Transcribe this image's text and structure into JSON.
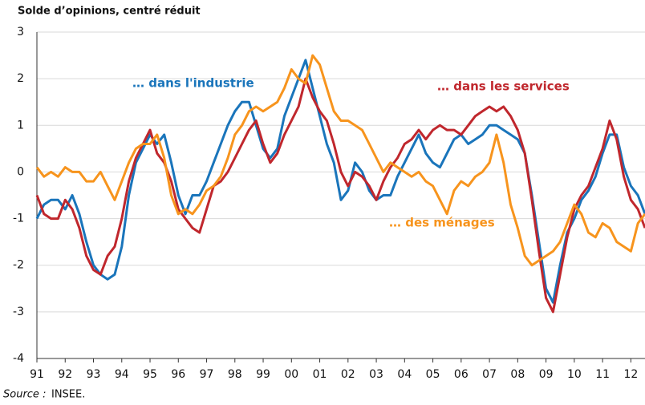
{
  "chart_data": {
    "type": "line",
    "title": "Solde d’opinions, centré réduit",
    "source_label": "Source :",
    "source": "INSEE.",
    "x": [
      1991,
      1991.25,
      1991.5,
      1991.75,
      1992,
      1992.25,
      1992.5,
      1992.75,
      1993,
      1993.25,
      1993.5,
      1993.75,
      1994,
      1994.25,
      1994.5,
      1994.75,
      1995,
      1995.25,
      1995.5,
      1995.75,
      1996,
      1996.25,
      1996.5,
      1996.75,
      1997,
      1997.25,
      1997.5,
      1997.75,
      1998,
      1998.25,
      1998.5,
      1998.75,
      1999,
      1999.25,
      1999.5,
      1999.75,
      2000,
      2000.25,
      2000.5,
      2000.75,
      2001,
      2001.25,
      2001.5,
      2001.75,
      2002,
      2002.25,
      2002.5,
      2002.75,
      2003,
      2003.25,
      2003.5,
      2003.75,
      2004,
      2004.25,
      2004.5,
      2004.75,
      2005,
      2005.25,
      2005.5,
      2005.75,
      2006,
      2006.25,
      2006.5,
      2006.75,
      2007,
      2007.25,
      2007.5,
      2007.75,
      2008,
      2008.25,
      2008.5,
      2008.75,
      2009,
      2009.25,
      2009.5,
      2009.75,
      2010,
      2010.25,
      2010.5,
      2010.75,
      2011,
      2011.25,
      2011.5,
      2011.75,
      2012,
      2012.25,
      2012.5
    ],
    "series": [
      {
        "name": "… dans l'industrie",
        "color": "#1a75bb",
        "values": [
          -1.0,
          -0.7,
          -0.6,
          -0.6,
          -0.8,
          -0.5,
          -0.9,
          -1.5,
          -2.0,
          -2.2,
          -2.3,
          -2.2,
          -1.6,
          -0.5,
          0.2,
          0.5,
          0.8,
          0.6,
          0.8,
          0.2,
          -0.5,
          -0.9,
          -0.5,
          -0.5,
          -0.2,
          0.2,
          0.6,
          1.0,
          1.3,
          1.5,
          1.5,
          1.0,
          0.5,
          0.3,
          0.5,
          1.2,
          1.6,
          2.0,
          2.4,
          1.8,
          1.2,
          0.6,
          0.2,
          -0.6,
          -0.4,
          0.2,
          0.0,
          -0.4,
          -0.6,
          -0.5,
          -0.5,
          -0.1,
          0.2,
          0.5,
          0.8,
          0.4,
          0.2,
          0.1,
          0.4,
          0.7,
          0.8,
          0.6,
          0.7,
          0.8,
          1.0,
          1.0,
          0.9,
          0.8,
          0.7,
          0.4,
          -0.5,
          -1.5,
          -2.5,
          -2.8,
          -2.0,
          -1.3,
          -1.0,
          -0.6,
          -0.4,
          -0.1,
          0.4,
          0.8,
          0.8,
          0.1,
          -0.3,
          -0.5,
          -0.9
        ]
      },
      {
        "name": "… dans les services",
        "color": "#c0272d",
        "values": [
          -0.5,
          -0.9,
          -1.0,
          -1.0,
          -0.6,
          -0.8,
          -1.2,
          -1.8,
          -2.1,
          -2.2,
          -1.8,
          -1.6,
          -1.0,
          -0.2,
          0.3,
          0.6,
          0.9,
          0.4,
          0.2,
          -0.2,
          -0.8,
          -1.0,
          -1.2,
          -1.3,
          -0.8,
          -0.3,
          -0.2,
          0.0,
          0.3,
          0.6,
          0.9,
          1.1,
          0.6,
          0.2,
          0.4,
          0.8,
          1.1,
          1.4,
          2.0,
          1.6,
          1.3,
          1.1,
          0.6,
          0.0,
          -0.3,
          0.0,
          -0.1,
          -0.3,
          -0.6,
          -0.2,
          0.1,
          0.3,
          0.6,
          0.7,
          0.9,
          0.7,
          0.9,
          1.0,
          0.9,
          0.9,
          0.8,
          1.0,
          1.2,
          1.3,
          1.4,
          1.3,
          1.4,
          1.2,
          0.9,
          0.4,
          -0.6,
          -1.7,
          -2.7,
          -3.0,
          -2.2,
          -1.4,
          -0.8,
          -0.5,
          -0.3,
          0.1,
          0.5,
          1.1,
          0.7,
          -0.1,
          -0.6,
          -0.8,
          -1.2
        ]
      },
      {
        "name": "… des ménages",
        "color": "#f7941d",
        "values": [
          0.1,
          -0.1,
          0.0,
          -0.1,
          0.1,
          0.0,
          0.0,
          -0.2,
          -0.2,
          0.0,
          -0.3,
          -0.6,
          -0.2,
          0.2,
          0.5,
          0.6,
          0.6,
          0.8,
          0.3,
          -0.5,
          -0.9,
          -0.8,
          -0.9,
          -0.7,
          -0.4,
          -0.3,
          -0.1,
          0.3,
          0.8,
          1.0,
          1.3,
          1.4,
          1.3,
          1.4,
          1.5,
          1.8,
          2.2,
          2.0,
          1.9,
          2.5,
          2.3,
          1.8,
          1.3,
          1.1,
          1.1,
          1.0,
          0.9,
          0.6,
          0.3,
          0.0,
          0.2,
          0.1,
          0.0,
          -0.1,
          0.0,
          -0.2,
          -0.3,
          -0.6,
          -0.9,
          -0.4,
          -0.2,
          -0.3,
          -0.1,
          0.0,
          0.2,
          0.8,
          0.2,
          -0.7,
          -1.2,
          -1.8,
          -2.0,
          -1.9,
          -1.8,
          -1.7,
          -1.5,
          -1.1,
          -0.7,
          -0.9,
          -1.3,
          -1.4,
          -1.1,
          -1.2,
          -1.5,
          -1.6,
          -1.7,
          -1.1,
          -0.9
        ]
      }
    ],
    "xlim": [
      1991,
      2012.5
    ],
    "xticks": [
      {
        "value": 1991,
        "label": "91"
      },
      {
        "value": 1992,
        "label": "92"
      },
      {
        "value": 1993,
        "label": "93"
      },
      {
        "value": 1994,
        "label": "94"
      },
      {
        "value": 1995,
        "label": "95"
      },
      {
        "value": 1996,
        "label": "96"
      },
      {
        "value": 1997,
        "label": "97"
      },
      {
        "value": 1998,
        "label": "98"
      },
      {
        "value": 1999,
        "label": "99"
      },
      {
        "value": 2000,
        "label": "00"
      },
      {
        "value": 2001,
        "label": "01"
      },
      {
        "value": 2002,
        "label": "02"
      },
      {
        "value": 2003,
        "label": "03"
      },
      {
        "value": 2004,
        "label": "04"
      },
      {
        "value": 2005,
        "label": "05"
      },
      {
        "value": 2006,
        "label": "06"
      },
      {
        "value": 2007,
        "label": "07"
      },
      {
        "value": 2008,
        "label": "08"
      },
      {
        "value": 2009,
        "label": "09"
      },
      {
        "value": 2010,
        "label": "10"
      },
      {
        "value": 2011,
        "label": "11"
      },
      {
        "value": 2012,
        "label": "12"
      }
    ],
    "ylim": [
      -4,
      3
    ],
    "yticks": [
      -4,
      -3,
      -2,
      -1,
      0,
      1,
      2,
      3
    ],
    "grid": true
  }
}
